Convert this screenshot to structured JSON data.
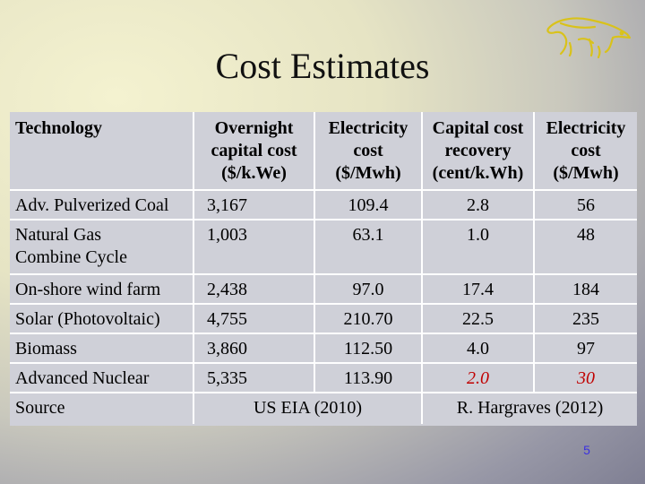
{
  "title": "Cost Estimates",
  "header": {
    "technology": "Technology",
    "col1": [
      "Overnight",
      "capital cost",
      "($/k.We)"
    ],
    "col2": [
      "Electricity",
      "cost",
      "($/Mwh)"
    ],
    "col3": [
      "Capital cost",
      "recovery",
      "(cent/k.Wh)"
    ],
    "col4": [
      "Electricity",
      "cost",
      "($/Mwh)"
    ]
  },
  "rows": [
    {
      "tech": [
        "Adv. Pulverized Coal"
      ],
      "overnight": "3,167",
      "elec": "109.4",
      "recovery": "2.8",
      "elec2": "56"
    },
    {
      "tech": [
        "Natural Gas",
        "Combine Cycle"
      ],
      "overnight": "1,003",
      "elec": "63.1",
      "recovery": "1.0",
      "elec2": "48"
    },
    {
      "tech": [
        "On-shore wind farm"
      ],
      "overnight": "2,438",
      "elec": "97.0",
      "recovery": "17.4",
      "elec2": "184"
    },
    {
      "tech": [
        "Solar (Photovoltaic)"
      ],
      "overnight": "4,755",
      "elec": "210.70",
      "recovery": "22.5",
      "elec2": "235"
    },
    {
      "tech": [
        "Biomass"
      ],
      "overnight": "3,860",
      "elec": "112.50",
      "recovery": "4.0",
      "elec2": "97"
    },
    {
      "tech": [
        "Advanced Nuclear"
      ],
      "overnight": "5,335",
      "elec": "113.90",
      "recovery": "2.0",
      "elec2": "30"
    }
  ],
  "source": {
    "label": "Source",
    "left": "US EIA (2010)",
    "right": "R. Hargraves (2012)"
  },
  "page_number": "5",
  "colors": {
    "highlight": "#c00000",
    "page_number": "#3a2fe0",
    "table_bg": "#cfd0d8"
  },
  "logo_icon": "anteater-logo-icon"
}
